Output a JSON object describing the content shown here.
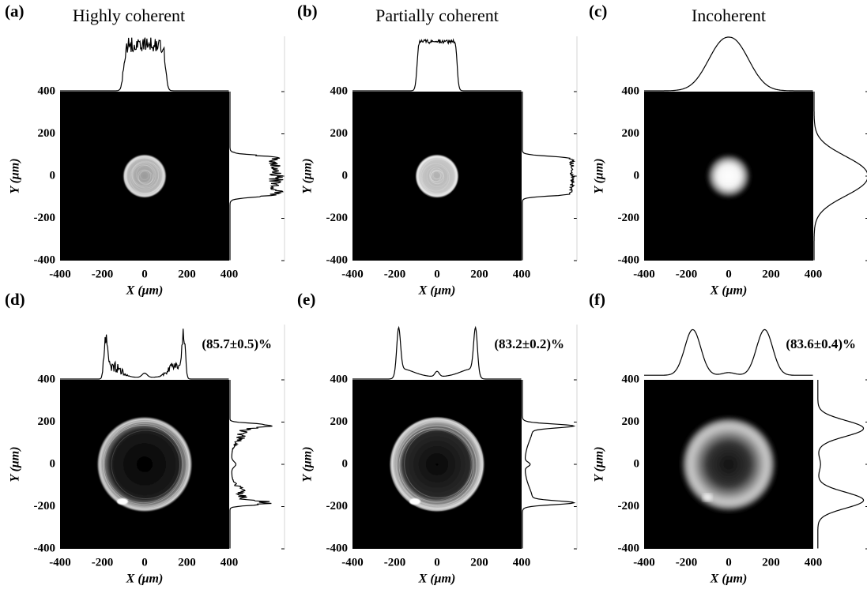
{
  "panels": [
    {
      "label": "(a)",
      "title": "Highly coherent",
      "x_label": "X (μm)",
      "y_label": "Y (μm)",
      "xticks": [
        "-400",
        "-200",
        "0",
        "200",
        "400"
      ],
      "yticks": [
        "400",
        "200",
        "0",
        "-200",
        "-400"
      ]
    },
    {
      "label": "(b)",
      "title": "Partially coherent",
      "x_label": "X (μm)",
      "y_label": "Y (μm)",
      "xticks": [
        "-400",
        "-200",
        "0",
        "200",
        "400"
      ],
      "yticks": [
        "400",
        "200",
        "0",
        "-200",
        "-400"
      ]
    },
    {
      "label": "(c)",
      "title": "Incoherent",
      "x_label": "X (μm)",
      "y_label": "Y (μm)",
      "xticks": [
        "-400",
        "-200",
        "0",
        "200",
        "400"
      ],
      "yticks": [
        "400",
        "200",
        "0",
        "-200",
        "-400"
      ]
    },
    {
      "label": "(d)",
      "efficiency": "(85.7±0.5)%",
      "x_label": "X (μm)",
      "y_label": "Y (μm)",
      "xticks": [
        "-400",
        "-200",
        "0",
        "200",
        "400"
      ],
      "yticks": [
        "400",
        "200",
        "0",
        "-200",
        "-400"
      ]
    },
    {
      "label": "(e)",
      "efficiency": "(83.2±0.2)%",
      "x_label": "X (μm)",
      "y_label": "Y (μm)",
      "xticks": [
        "-400",
        "-200",
        "0",
        "200",
        "400"
      ],
      "yticks": [
        "400",
        "200",
        "0",
        "-200",
        "-400"
      ]
    },
    {
      "label": "(f)",
      "efficiency": "(83.6±0.4)%",
      "x_label": "X (μm)",
      "y_label": "Y (μm)",
      "xticks": [
        "-400",
        "-200",
        "0",
        "200",
        "400"
      ],
      "yticks": [
        "400",
        "200",
        "0",
        "-200",
        "-400"
      ]
    }
  ]
}
